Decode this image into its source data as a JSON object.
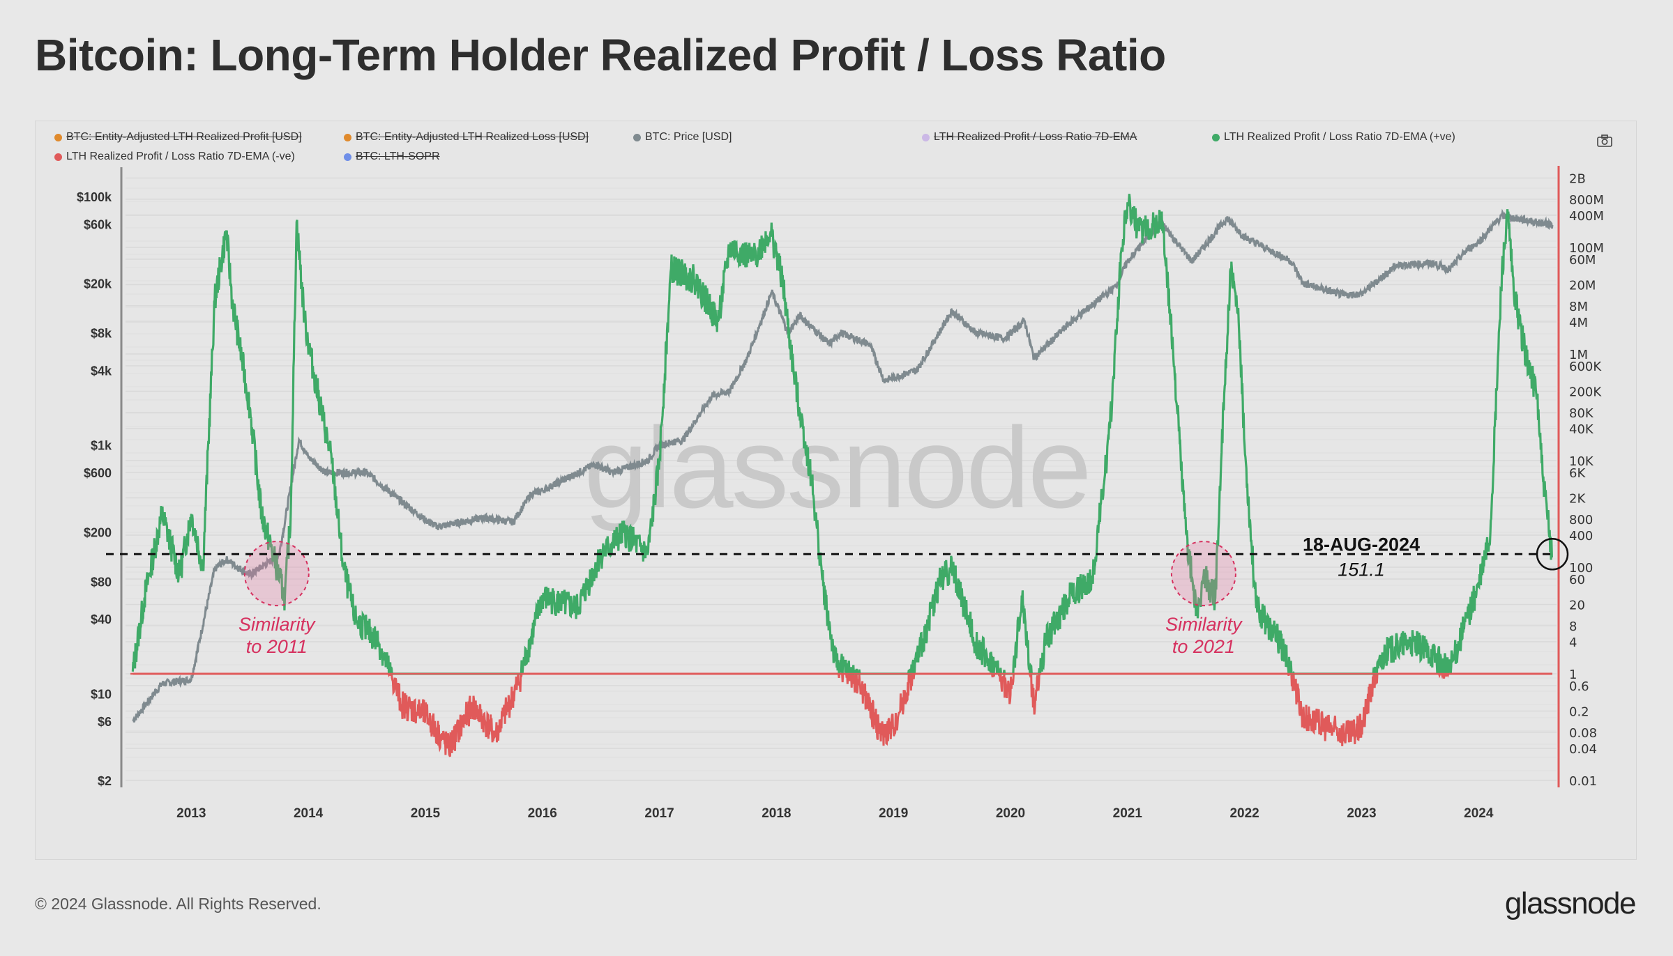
{
  "title": "Bitcoin: Long-Term Holder Realized Profit / Loss Ratio",
  "legend": [
    {
      "label": "BTC: Entity-Adjusted LTH Realized Profit [USD]",
      "color": "#e08a2c",
      "hidden": true
    },
    {
      "label": "BTC: Entity-Adjusted LTH Realized Loss [USD]",
      "color": "#e08a2c",
      "hidden": true
    },
    {
      "label": "BTC: Price [USD]",
      "color": "#7f8a8f",
      "hidden": false
    },
    {
      "label": "LTH Realized Profit / Loss Ratio 7D-EMA",
      "color": "#cbb8e6",
      "hidden": true
    },
    {
      "label": "LTH Realized Profit / Loss Ratio 7D-EMA (+ve)",
      "color": "#3faa67",
      "hidden": false
    },
    {
      "label": "LTH Realized Profit / Loss Ratio 7D-EMA (-ve)",
      "color": "#e05a5a",
      "hidden": false
    },
    {
      "label": "BTC: LTH-SOPR",
      "color": "#6f8fe8",
      "hidden": true
    }
  ],
  "camera_icon": "camera-icon",
  "watermark": "glassnode",
  "footer": {
    "copyright": "© 2024 Glassnode. All Rights Reserved.",
    "logo": "glassnode"
  },
  "chart_data": {
    "type": "line",
    "title": "Bitcoin: Long-Term Holder Realized Profit / Loss Ratio",
    "x_ticks": [
      "2013",
      "2014",
      "2015",
      "2016",
      "2017",
      "2018",
      "2019",
      "2020",
      "2021",
      "2022",
      "2023",
      "2024"
    ],
    "xlim": [
      2012.48,
      2024.63
    ],
    "left_axis": {
      "scale": "log",
      "range": [
        2,
        100000
      ],
      "ticks": [
        {
          "label": "$100k",
          "value": 100000
        },
        {
          "label": "$60k",
          "value": 60000
        },
        {
          "label": "$20k",
          "value": 20000
        },
        {
          "label": "$8k",
          "value": 8000
        },
        {
          "label": "$4k",
          "value": 4000
        },
        {
          "label": "$1k",
          "value": 1000
        },
        {
          "label": "$600",
          "value": 600
        },
        {
          "label": "$200",
          "value": 200
        },
        {
          "label": "$80",
          "value": 80
        },
        {
          "label": "$40",
          "value": 40
        },
        {
          "label": "$10",
          "value": 10
        },
        {
          "label": "$6",
          "value": 6
        },
        {
          "label": "$2",
          "value": 2
        }
      ]
    },
    "right_axis": {
      "scale": "log",
      "range": [
        0.01,
        2000000000
      ],
      "ticks": [
        {
          "label": "2B",
          "value": 2000000000.0
        },
        {
          "label": "800M",
          "value": 800000000.0
        },
        {
          "label": "400M",
          "value": 400000000.0
        },
        {
          "label": "100M",
          "value": 100000000.0
        },
        {
          "label": "60M",
          "value": 60000000.0
        },
        {
          "label": "20M",
          "value": 20000000.0
        },
        {
          "label": "8M",
          "value": 8000000.0
        },
        {
          "label": "4M",
          "value": 4000000.0
        },
        {
          "label": "1M",
          "value": 1000000.0
        },
        {
          "label": "600K",
          "value": 600000.0
        },
        {
          "label": "200K",
          "value": 200000.0
        },
        {
          "label": "80K",
          "value": 80000.0
        },
        {
          "label": "40K",
          "value": 40000.0
        },
        {
          "label": "10K",
          "value": 10000.0
        },
        {
          "label": "6K",
          "value": 6000.0
        },
        {
          "label": "2K",
          "value": 2000.0
        },
        {
          "label": "800",
          "value": 800
        },
        {
          "label": "400",
          "value": 400
        },
        {
          "label": "100",
          "value": 100
        },
        {
          "label": "60",
          "value": 60
        },
        {
          "label": "20",
          "value": 20
        },
        {
          "label": "8",
          "value": 8
        },
        {
          "label": "4",
          "value": 4
        },
        {
          "label": "1",
          "value": 1
        },
        {
          "label": "0.6",
          "value": 0.6
        },
        {
          "label": "0.2",
          "value": 0.2
        },
        {
          "label": "0.08",
          "value": 0.08
        },
        {
          "label": "0.04",
          "value": 0.04
        },
        {
          "label": "0.01",
          "value": 0.01
        }
      ]
    },
    "grid": true,
    "series": [
      {
        "name": "BTC: Price [USD]",
        "axis": "left",
        "color": "#7f8a8f",
        "points": [
          [
            2012.5,
            6
          ],
          [
            2012.75,
            12
          ],
          [
            2013.0,
            13
          ],
          [
            2013.2,
            100
          ],
          [
            2013.3,
            120
          ],
          [
            2013.5,
            90
          ],
          [
            2013.75,
            130
          ],
          [
            2013.92,
            1100
          ],
          [
            2014.0,
            800
          ],
          [
            2014.15,
            600
          ],
          [
            2014.5,
            600
          ],
          [
            2014.75,
            380
          ],
          [
            2015.0,
            250
          ],
          [
            2015.1,
            220
          ],
          [
            2015.5,
            260
          ],
          [
            2015.75,
            240
          ],
          [
            2015.9,
            400
          ],
          [
            2016.0,
            430
          ],
          [
            2016.45,
            700
          ],
          [
            2016.6,
            600
          ],
          [
            2016.9,
            750
          ],
          [
            2017.0,
            1000
          ],
          [
            2017.2,
            1100
          ],
          [
            2017.45,
            2500
          ],
          [
            2017.6,
            2700
          ],
          [
            2017.75,
            5000
          ],
          [
            2017.96,
            17000
          ],
          [
            2018.1,
            8000
          ],
          [
            2018.2,
            11000
          ],
          [
            2018.45,
            6500
          ],
          [
            2018.55,
            8000
          ],
          [
            2018.8,
            6400
          ],
          [
            2018.92,
            3300
          ],
          [
            2019.2,
            4000
          ],
          [
            2019.5,
            12000
          ],
          [
            2019.7,
            8000
          ],
          [
            2019.95,
            7200
          ],
          [
            2020.12,
            10000
          ],
          [
            2020.2,
            5000
          ],
          [
            2020.5,
            9500
          ],
          [
            2020.9,
            19000
          ],
          [
            2021.0,
            30000
          ],
          [
            2021.28,
            63000
          ],
          [
            2021.55,
            30000
          ],
          [
            2021.85,
            67000
          ],
          [
            2022.0,
            47000
          ],
          [
            2022.4,
            30000
          ],
          [
            2022.5,
            20000
          ],
          [
            2022.85,
            16000
          ],
          [
            2023.0,
            16500
          ],
          [
            2023.3,
            28000
          ],
          [
            2023.6,
            29000
          ],
          [
            2023.75,
            26000
          ],
          [
            2023.9,
            37000
          ],
          [
            2024.0,
            43000
          ],
          [
            2024.2,
            70000
          ],
          [
            2024.5,
            62000
          ],
          [
            2024.63,
            59000
          ]
        ]
      },
      {
        "name": "LTH Realized Profit / Loss Ratio 7D-EMA",
        "axis": "right",
        "positive_color": "#3faa67",
        "negative_color": "#e05a5a",
        "points": [
          [
            2012.5,
            1.1
          ],
          [
            2012.6,
            27
          ],
          [
            2012.75,
            1000
          ],
          [
            2012.9,
            70
          ],
          [
            2013.0,
            1000
          ],
          [
            2013.1,
            100
          ],
          [
            2013.2,
            10000000.0
          ],
          [
            2013.3,
            200000000.0
          ],
          [
            2013.35,
            10000000.0
          ],
          [
            2013.5,
            100000.0
          ],
          [
            2013.6,
            1000
          ],
          [
            2013.7,
            170
          ],
          [
            2013.8,
            27
          ],
          [
            2013.85,
            1000
          ],
          [
            2013.9,
            300000000.0
          ],
          [
            2013.97,
            4000000.0
          ],
          [
            2014.05,
            400000.0
          ],
          [
            2014.2,
            10000.0
          ],
          [
            2014.3,
            100
          ],
          [
            2014.4,
            11
          ],
          [
            2014.6,
            4
          ],
          [
            2014.8,
            0.27
          ],
          [
            2015.0,
            0.17
          ],
          [
            2015.2,
            0.04
          ],
          [
            2015.4,
            0.25
          ],
          [
            2015.6,
            0.07
          ],
          [
            2015.8,
            0.7
          ],
          [
            2016.0,
            27
          ],
          [
            2016.3,
            17
          ],
          [
            2016.5,
            170
          ],
          [
            2016.7,
            440
          ],
          [
            2016.9,
            170
          ],
          [
            2017.0,
            10000.0
          ],
          [
            2017.1,
            40000000.0
          ],
          [
            2017.3,
            25000000.0
          ],
          [
            2017.5,
            4000000.0
          ],
          [
            2017.6,
            100000000.0
          ],
          [
            2017.8,
            60000000.0
          ],
          [
            2017.95,
            200000000.0
          ],
          [
            2018.05,
            25000000.0
          ],
          [
            2018.15,
            400000.0
          ],
          [
            2018.3,
            4400
          ],
          [
            2018.4,
            44
          ],
          [
            2018.5,
            1.7
          ],
          [
            2018.7,
            0.7
          ],
          [
            2018.9,
            0.07
          ],
          [
            2019.0,
            0.1
          ],
          [
            2019.1,
            0.4
          ],
          [
            2019.25,
            4
          ],
          [
            2019.4,
            60
          ],
          [
            2019.5,
            100
          ],
          [
            2019.7,
            4
          ],
          [
            2019.9,
            1
          ],
          [
            2020.0,
            0.4
          ],
          [
            2020.1,
            27
          ],
          [
            2020.2,
            0.26
          ],
          [
            2020.3,
            4
          ],
          [
            2020.5,
            27
          ],
          [
            2020.7,
            60
          ],
          [
            2020.85,
            40000.0
          ],
          [
            2020.95,
            100000000.0
          ],
          [
            2021.0,
            700000000.0
          ],
          [
            2021.1,
            200000000.0
          ],
          [
            2021.3,
            300000000.0
          ],
          [
            2021.4,
            600000.0
          ],
          [
            2021.5,
            440
          ],
          [
            2021.6,
            11
          ],
          [
            2021.65,
            70
          ],
          [
            2021.75,
            27
          ],
          [
            2021.8,
            10000.0
          ],
          [
            2021.88,
            40000000.0
          ],
          [
            2021.95,
            4000000.0
          ],
          [
            2022.0,
            20000.0
          ],
          [
            2022.1,
            17
          ],
          [
            2022.3,
            4
          ],
          [
            2022.4,
            1.1
          ],
          [
            2022.5,
            0.16
          ],
          [
            2022.7,
            0.1
          ],
          [
            2022.9,
            0.07
          ],
          [
            2023.0,
            0.1
          ],
          [
            2023.1,
            0.7
          ],
          [
            2023.2,
            2.5
          ],
          [
            2023.4,
            4
          ],
          [
            2023.6,
            2.5
          ],
          [
            2023.75,
            1.1
          ],
          [
            2023.9,
            11
          ],
          [
            2024.0,
            44
          ],
          [
            2024.1,
            440
          ],
          [
            2024.2,
            40000000.0
          ],
          [
            2024.25,
            400000000.0
          ],
          [
            2024.3,
            15000000.0
          ],
          [
            2024.4,
            1000000.0
          ],
          [
            2024.5,
            170000.0
          ],
          [
            2024.55,
            4400
          ],
          [
            2024.63,
            151.1
          ]
        ]
      }
    ],
    "annotations": [
      {
        "text_line1": "Similarity",
        "text_line2": "to 2011",
        "x": 2013.73,
        "y": 76,
        "color": "#d6315f"
      },
      {
        "text_line1": "Similarity",
        "text_line2": "to 2021",
        "x": 2021.65,
        "y": 76,
        "color": "#d6315f"
      }
    ],
    "current": {
      "date": "18-AUG-2024",
      "value": "151.1",
      "x": 2024.63,
      "y": 151.1
    }
  }
}
